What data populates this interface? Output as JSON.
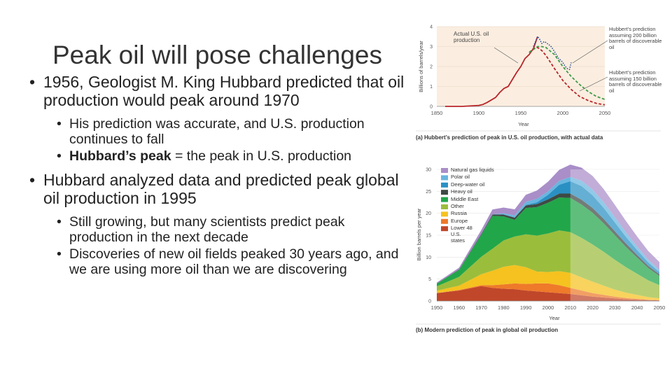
{
  "slide": {
    "title": "Peak oil will pose challenges",
    "bullets": [
      {
        "text": "1956, Geologist M. King Hubbard predicted that oil production would peak around 1970",
        "sub": [
          {
            "text": "His prediction was accurate, and U.S. production continues to fall"
          },
          {
            "bold": "Hubbard’s peak",
            "rest": " = the peak in U.S. production"
          }
        ]
      },
      {
        "text": "Hubbard analyzed data and predicted peak global oil production in 1995",
        "sub": [
          {
            "text": "Still growing, but many scientists predict peak production in the next decade"
          },
          {
            "text": "Discoveries of new oil fields peaked 30 years ago, and we are using more oil than we are discovering"
          }
        ]
      }
    ]
  },
  "chart_data": [
    {
      "type": "line",
      "caption": "(a) Hubbert’s prediction of peak in U.S. oil production, with actual data",
      "xlabel": "Year",
      "ylabel": "Billions of barrels/year",
      "xlim": [
        1850,
        2050
      ],
      "ylim": [
        0,
        4
      ],
      "xticks": [
        1850,
        1900,
        1950,
        2000,
        2050
      ],
      "yticks": [
        0,
        1,
        2,
        3,
        4
      ],
      "annotations": {
        "actual": "Actual U.S. oil production",
        "pred200": "Hubbert’s prediction assuming 200 billion barrels of discoverable oil",
        "pred150": "Hubbert’s prediction assuming 150 billion barrels of discoverable oil"
      },
      "series": [
        {
          "key": "actual",
          "color": "#b8252b",
          "x": [
            1860,
            1880,
            1900,
            1905,
            1910,
            1920,
            1925,
            1930,
            1935,
            1940,
            1945,
            1950,
            1955,
            1960,
            1965,
            1970
          ],
          "y": [
            0,
            0,
            0.05,
            0.1,
            0.2,
            0.45,
            0.7,
            0.9,
            1.0,
            1.35,
            1.7,
            2.0,
            2.4,
            2.6,
            2.9,
            3.5
          ]
        },
        {
          "key": "pred150",
          "color": "#b8252b",
          "dash": true,
          "x": [
            1960,
            1965,
            1970,
            1975,
            1980,
            1990,
            2000,
            2010,
            2020,
            2030,
            2040,
            2050
          ],
          "y": [
            2.7,
            2.9,
            2.95,
            2.8,
            2.55,
            1.9,
            1.3,
            0.85,
            0.5,
            0.3,
            0.15,
            0.08
          ]
        },
        {
          "key": "pred200",
          "color": "#3d9a48",
          "dash": true,
          "x": [
            1960,
            1965,
            1970,
            1975,
            1980,
            1990,
            2000,
            2010,
            2020,
            2030,
            2040,
            2050
          ],
          "y": [
            2.7,
            2.85,
            3.0,
            3.0,
            2.95,
            2.6,
            2.0,
            1.5,
            1.1,
            0.75,
            0.5,
            0.35
          ]
        },
        {
          "key": "actual-late",
          "color": "#2e4f9a",
          "dot": true,
          "x": [
            1965,
            1968,
            1970,
            1972,
            1975,
            1978,
            1980,
            1983,
            1985,
            1987,
            1990,
            1993,
            1995,
            1998,
            2000,
            2003,
            2005,
            2008,
            2010
          ],
          "y": [
            3.0,
            3.3,
            3.5,
            3.4,
            3.15,
            3.25,
            3.2,
            3.1,
            3.05,
            2.95,
            2.75,
            2.55,
            2.4,
            2.3,
            2.2,
            2.0,
            1.9,
            1.85,
            2.2
          ]
        }
      ]
    },
    {
      "type": "area",
      "caption": "(b) Modern prediction of peak in global oil production",
      "xlabel": "Year",
      "ylabel": "Billion barrels per year",
      "xlim": [
        1950,
        2050
      ],
      "ylim": [
        0,
        30
      ],
      "xticks": [
        1950,
        1960,
        1970,
        1980,
        1990,
        2000,
        2010,
        2020,
        2030,
        2040,
        2050
      ],
      "yticks": [
        0,
        5,
        10,
        15,
        20,
        25,
        30
      ],
      "x": [
        1950,
        1960,
        1970,
        1975,
        1980,
        1985,
        1990,
        1995,
        2000,
        2005,
        2010,
        2015,
        2020,
        2025,
        2030,
        2035,
        2040,
        2045,
        2050
      ],
      "series": [
        {
          "name": "Lower 48 U.S. states",
          "color": "#c0472a",
          "values": [
            1.8,
            2.4,
            3.4,
            3.0,
            2.8,
            2.7,
            2.4,
            2.2,
            2.0,
            1.8,
            1.6,
            1.3,
            1.0,
            0.8,
            0.6,
            0.4,
            0.3,
            0.2,
            0.15
          ]
        },
        {
          "name": "Europe",
          "color": "#ee7a2a",
          "values": [
            0.05,
            0.1,
            0.2,
            0.6,
            1.0,
            1.3,
            1.5,
            1.8,
            2.0,
            1.8,
            1.4,
            1.1,
            0.8,
            0.6,
            0.4,
            0.3,
            0.2,
            0.1,
            0.05
          ]
        },
        {
          "name": "Russia",
          "color": "#f5c21f",
          "values": [
            0.5,
            1.0,
            2.5,
            3.3,
            4.0,
            4.2,
            3.8,
            2.7,
            2.6,
            3.2,
            3.4,
            3.0,
            2.6,
            2.1,
            1.6,
            1.2,
            0.9,
            0.6,
            0.4
          ]
        },
        {
          "name": "Other",
          "color": "#9bbd3c",
          "values": [
            1.0,
            2.0,
            4.0,
            5.0,
            6.0,
            6.5,
            7.5,
            8.2,
            8.8,
            9.3,
            9.3,
            9.0,
            8.5,
            7.7,
            6.8,
            5.8,
            4.8,
            3.8,
            3.0
          ]
        },
        {
          "name": "Middle East",
          "color": "#22a64a",
          "values": [
            0.6,
            1.6,
            5.0,
            7.5,
            5.5,
            3.8,
            6.0,
            6.5,
            7.0,
            7.5,
            7.8,
            7.6,
            7.2,
            6.5,
            5.6,
            4.6,
            3.7,
            2.8,
            2.1
          ]
        },
        {
          "name": "Heavy oil",
          "color": "#3e4a44",
          "values": [
            0.05,
            0.1,
            0.2,
            0.3,
            0.4,
            0.5,
            0.6,
            0.7,
            0.8,
            0.9,
            1.0,
            1.1,
            1.1,
            1.0,
            0.9,
            0.8,
            0.6,
            0.5,
            0.4
          ]
        },
        {
          "name": "Deep-water oil",
          "color": "#2a90c4",
          "values": [
            0,
            0,
            0,
            0,
            0,
            0,
            0.1,
            0.4,
            1.0,
            2.0,
            2.8,
            3.1,
            2.9,
            2.5,
            2.0,
            1.5,
            1.1,
            0.8,
            0.5
          ]
        },
        {
          "name": "Polar oil",
          "color": "#67b6df",
          "values": [
            0,
            0,
            0,
            0.05,
            0.3,
            0.5,
            0.7,
            0.8,
            0.8,
            0.9,
            1.0,
            1.2,
            1.3,
            1.3,
            1.2,
            1.0,
            0.8,
            0.6,
            0.5
          ]
        },
        {
          "name": "Natural gas liquids",
          "color": "#a98ec8",
          "values": [
            0.2,
            0.4,
            0.9,
            1.1,
            1.3,
            1.4,
            1.6,
            1.9,
            2.2,
            2.5,
            2.8,
            3.0,
            3.1,
            3.0,
            2.8,
            2.6,
            2.3,
            2.0,
            1.8
          ]
        }
      ],
      "forecast_from": 2010
    }
  ]
}
